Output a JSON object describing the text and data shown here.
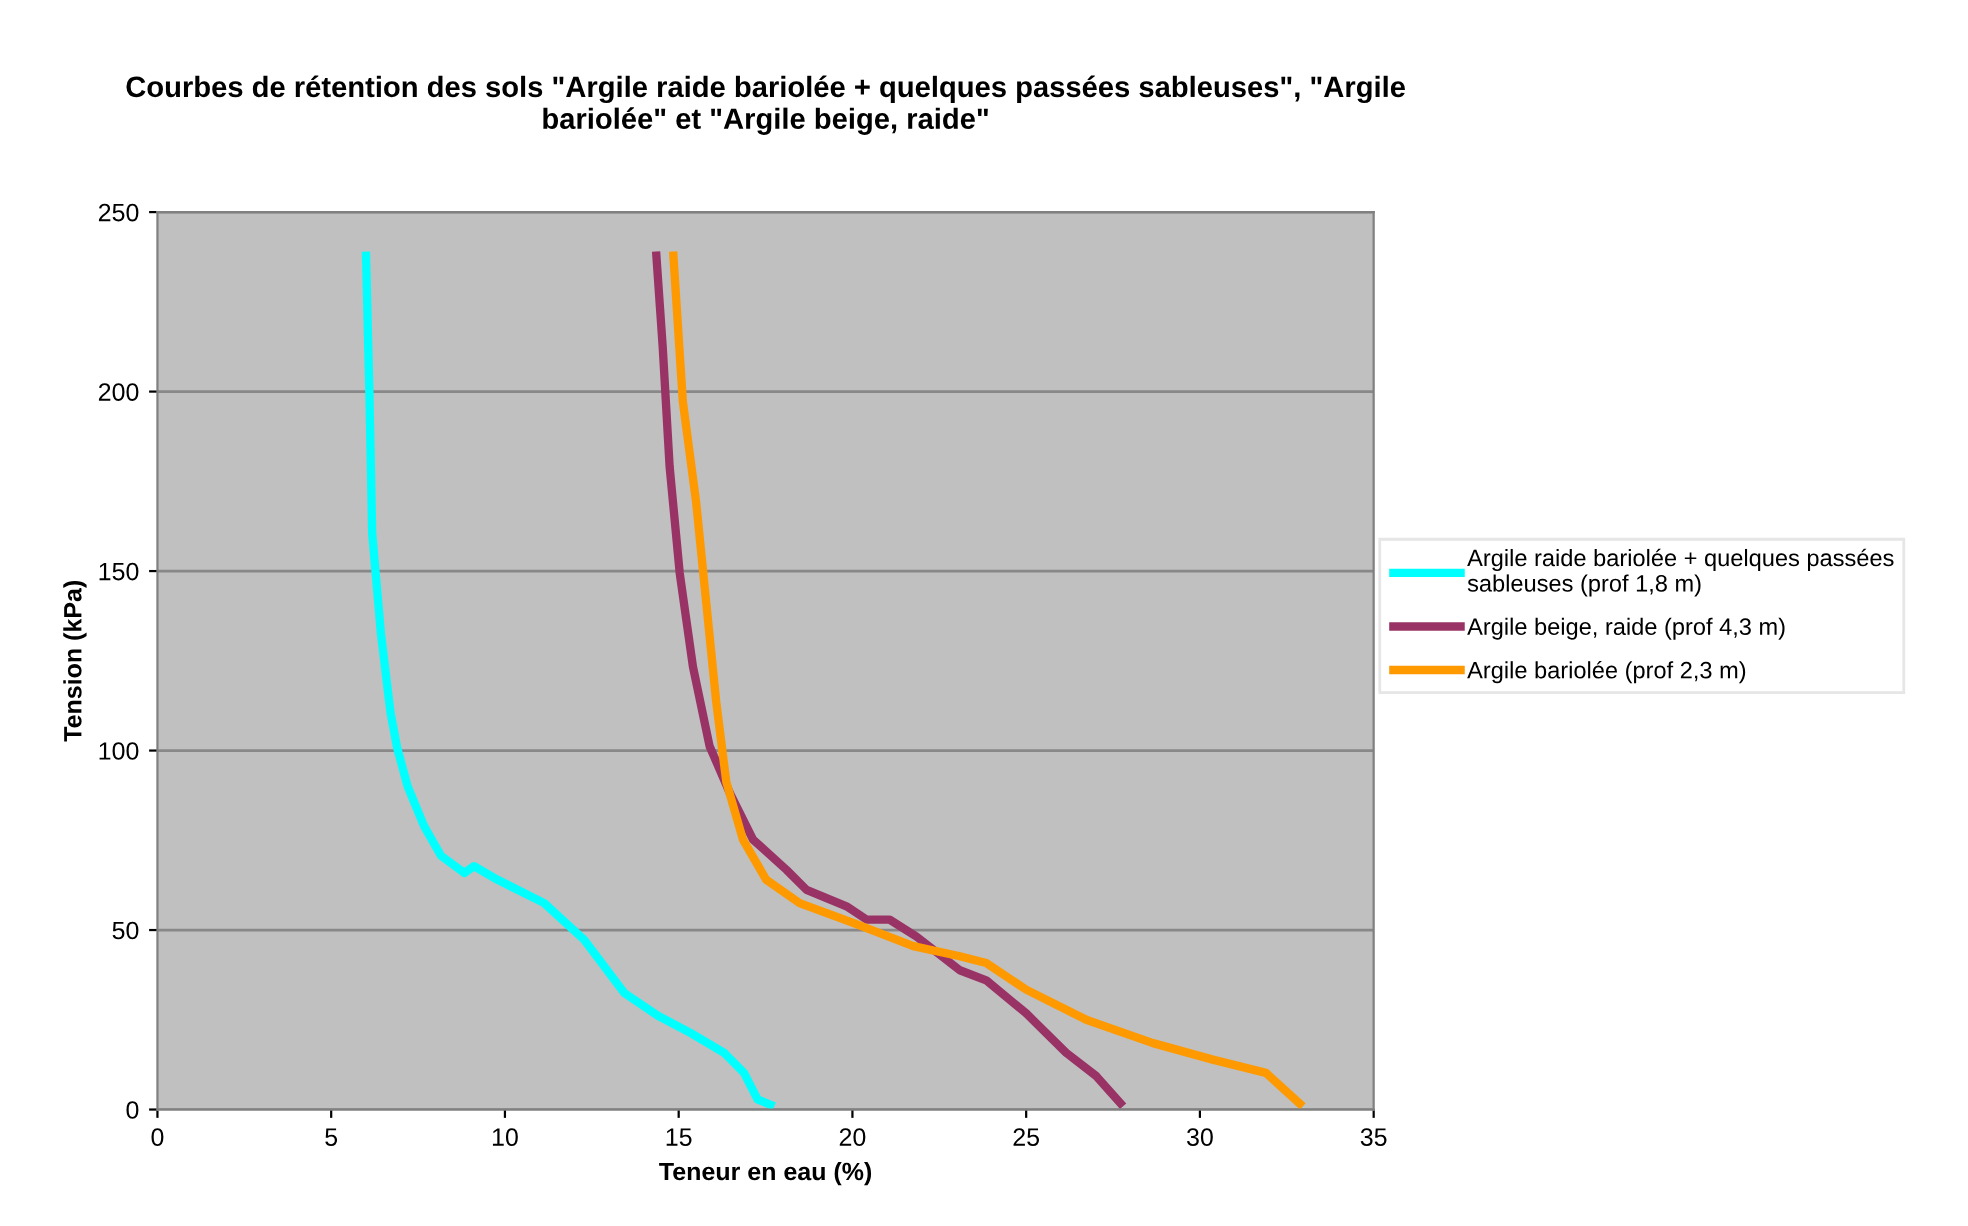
{
  "chart_data": {
    "type": "line",
    "title": "Courbes de rétention des sols \"Argile raide bariolée + quelques passées sableuses\", \"Argile\nbariolée\" et \"Argile beige, raide\"",
    "xlabel": "Teneur en eau (%)",
    "ylabel": "Tension (kPa)",
    "xlim": [
      0,
      35
    ],
    "xticks": [
      0,
      5,
      10,
      15,
      20,
      25,
      30,
      35
    ],
    "ylim": [
      0,
      250
    ],
    "yticks": [
      0,
      50,
      100,
      150,
      200,
      250
    ],
    "grid": "y",
    "legend": "right",
    "marker": "none",
    "line_style": "solid",
    "series": [
      {
        "name": "Argile raide bariolée + quelques passées\nsableuses (prof 1,8 m)",
        "color": "#00ffff",
        "x": [
          6.0,
          6.1,
          6.18,
          6.43,
          6.71,
          6.9,
          7.2,
          7.67,
          8.16,
          8.83,
          9.11,
          9.79,
          11.13,
          12.28,
          13.43,
          14.39,
          15.35,
          16.31,
          16.88,
          17.27,
          17.75
        ],
        "values": [
          239,
          199.5,
          160.5,
          132.7,
          110.4,
          100.7,
          90,
          79,
          70.7,
          65.9,
          67.8,
          64,
          57.5,
          47.3,
          32.5,
          26.2,
          21.3,
          15.8,
          10.2,
          2.8,
          0.9
        ]
      },
      {
        "name": "Argile beige, raide (prof 4,3 m)",
        "color": "#993366",
        "x": [
          14.35,
          14.54,
          14.74,
          15.03,
          15.41,
          15.89,
          16.47,
          17.14,
          18.1,
          18.68,
          19.83,
          20.41,
          21.07,
          21.84,
          23.09,
          23.85,
          25.0,
          26.15,
          27.02,
          27.79
        ],
        "values": [
          239,
          212.5,
          179,
          149.4,
          123.4,
          101.2,
          88.2,
          75.2,
          66.8,
          61.2,
          56.6,
          52.9,
          52.9,
          48.2,
          38.8,
          36,
          26.8,
          15.8,
          9.3,
          0.9
        ]
      },
      {
        "name": "Argile bariolée (prof 2,3 m)",
        "color": "#ff9900",
        "x": [
          14.84,
          15.12,
          15.5,
          15.79,
          16.08,
          16.37,
          16.85,
          17.52,
          18.48,
          20.02,
          21.75,
          23.09,
          23.85,
          25.0,
          26.73,
          28.65,
          30.37,
          31.9,
          32.96
        ],
        "values": [
          239,
          197.2,
          169.4,
          141.5,
          113.6,
          91.3,
          75.2,
          64,
          57.5,
          52,
          45.5,
          42.7,
          40.8,
          33.4,
          25,
          18.5,
          13.9,
          10.2,
          0.9
        ]
      }
    ]
  }
}
